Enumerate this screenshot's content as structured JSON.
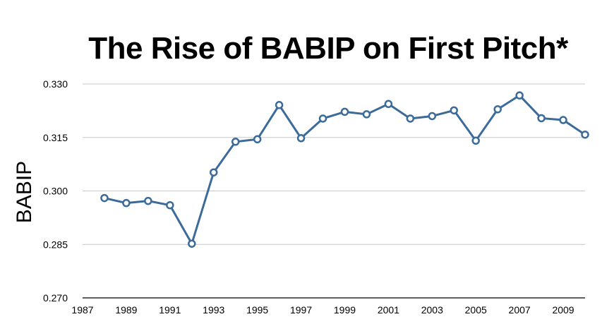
{
  "chart_data": {
    "type": "line",
    "title": "The Rise of BABIP on First Pitch*",
    "xlabel": "",
    "ylabel": "BABIP",
    "xlim": [
      1987,
      2010
    ],
    "ylim": [
      0.27,
      0.33
    ],
    "x_ticks": [
      "1987",
      "1989",
      "1991",
      "1993",
      "1995",
      "1997",
      "1999",
      "2001",
      "2003",
      "2005",
      "2007",
      "2009"
    ],
    "y_ticks": [
      "0.270",
      "0.285",
      "0.300",
      "0.315",
      "0.330"
    ],
    "grid": true,
    "legend": "none",
    "series": [
      {
        "color": "#3c6b9a",
        "x": [
          1988,
          1989,
          1990,
          1991,
          1992,
          1993,
          1994,
          1995,
          1996,
          1997,
          1998,
          1999,
          2000,
          2001,
          2002,
          2003,
          2004,
          2005,
          2006,
          2007,
          2008,
          2009,
          2010
        ],
        "y": [
          0.298,
          0.2966,
          0.2972,
          0.296,
          0.2852,
          0.3052,
          0.3138,
          0.3145,
          0.3241,
          0.3148,
          0.3203,
          0.3222,
          0.3215,
          0.3244,
          0.3203,
          0.321,
          0.3226,
          0.3141,
          0.3229,
          0.3268,
          0.3204,
          0.3199,
          0.3158
        ]
      }
    ]
  }
}
